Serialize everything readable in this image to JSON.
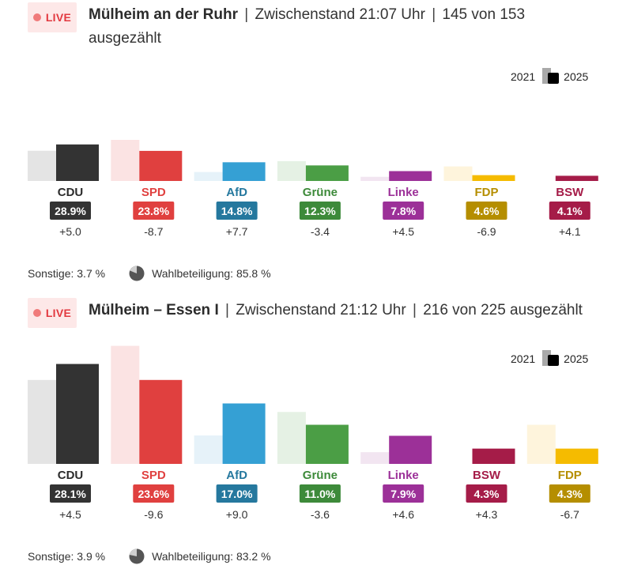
{
  "legend": {
    "prev": "2021",
    "curr": "2025"
  },
  "sections": [
    {
      "live": "LIVE",
      "place": "Mülheim an der Ruhr",
      "status": "Zwischenstand 21:07 Uhr",
      "count_line1": "145 von 153",
      "count_line2": "ausgezählt",
      "sonstige": "Sonstige: 3.7 %",
      "turnout": "Wahlbeteiligung: 85.8 %"
    },
    {
      "live": "LIVE",
      "place": "Mülheim – Essen I",
      "status": "Zwischenstand 21:12 Uhr",
      "count": "216 von 225 ausgezählt",
      "sonstige": "Sonstige: 3.9 %",
      "turnout": "Wahlbeteiligung: 83.2 %"
    }
  ],
  "chart_data": [
    {
      "type": "bar",
      "categories": [
        "CDU",
        "SPD",
        "AfD",
        "Grüne",
        "Linke",
        "FDP",
        "BSW"
      ],
      "series": [
        {
          "name": "2021",
          "values": [
            23.9,
            32.5,
            7.1,
            15.7,
            3.3,
            11.5,
            0
          ]
        },
        {
          "name": "2025",
          "values": [
            28.9,
            23.8,
            14.8,
            12.3,
            7.8,
            4.6,
            4.1
          ]
        }
      ],
      "value_labels": [
        "28.9%",
        "23.8%",
        "14.8%",
        "12.3%",
        "7.8%",
        "4.6%",
        "4.1%"
      ],
      "diffs": [
        "+5.0",
        "-8.7",
        "+7.7",
        "-3.4",
        "+4.5",
        "-6.9",
        "+4.1"
      ],
      "colors": [
        "#333333",
        "#e0403f",
        "#35a0d4",
        "#4b9e45",
        "#9c3098",
        "#f5bb00",
        "#a51c48"
      ],
      "badge_colors": [
        "#333333",
        "#e0403f",
        "#25789e",
        "#3d8a3a",
        "#9c3098",
        "#b58e00",
        "#a51c48"
      ],
      "prev_colors": [
        "#e4e4e4",
        "#fbe3e3",
        "#e6f2f9",
        "#e5f1e4",
        "#f2e5f1",
        "#fef4dc",
        "#f5e0e7"
      ]
    },
    {
      "type": "bar",
      "categories": [
        "CDU",
        "SPD",
        "AfD",
        "Grüne",
        "Linke",
        "BSW",
        "FDP"
      ],
      "series": [
        {
          "name": "2021",
          "values": [
            23.6,
            33.2,
            8.0,
            14.6,
            3.3,
            0,
            11.0
          ]
        },
        {
          "name": "2025",
          "values": [
            28.1,
            23.6,
            17.0,
            11.0,
            7.9,
            4.3,
            4.3
          ]
        }
      ],
      "value_labels": [
        "28.1%",
        "23.6%",
        "17.0%",
        "11.0%",
        "7.9%",
        "4.3%",
        "4.3%"
      ],
      "diffs": [
        "+4.5",
        "-9.6",
        "+9.0",
        "-3.6",
        "+4.6",
        "+4.3",
        "-6.7"
      ],
      "colors": [
        "#333333",
        "#e0403f",
        "#35a0d4",
        "#4b9e45",
        "#9c3098",
        "#a51c48",
        "#f5bb00"
      ],
      "badge_colors": [
        "#333333",
        "#e0403f",
        "#25789e",
        "#3d8a3a",
        "#9c3098",
        "#a51c48",
        "#b58e00"
      ],
      "prev_colors": [
        "#e4e4e4",
        "#fbe3e3",
        "#e6f2f9",
        "#e5f1e4",
        "#f2e5f1",
        "#f5e0e7",
        "#fef4dc"
      ]
    }
  ]
}
